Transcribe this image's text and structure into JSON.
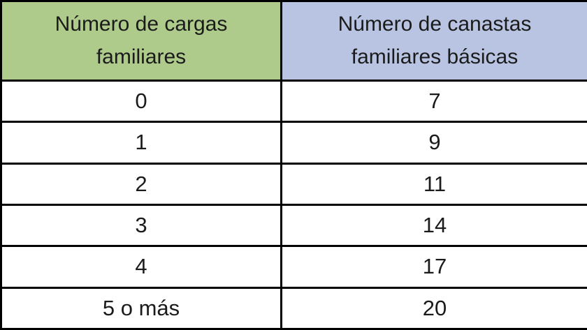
{
  "table": {
    "headers": [
      {
        "label": "Número de cargas familiares",
        "bg": "#aecb8c"
      },
      {
        "label": "Número de canastas familiares básicas",
        "bg": "#b8c4e2"
      }
    ],
    "rows": [
      [
        "0",
        "7"
      ],
      [
        "1",
        "9"
      ],
      [
        "2",
        "11"
      ],
      [
        "3",
        "14"
      ],
      [
        "4",
        "17"
      ],
      [
        "5 o más",
        "20"
      ]
    ]
  },
  "colors": {
    "header_green": "#aecb8c",
    "header_blue": "#b8c4e2",
    "border": "#000000",
    "text": "#1b1b1b",
    "row_background": "#ffffff"
  },
  "chart_data": {
    "type": "table",
    "title": "",
    "columns": [
      "Número de cargas familiares",
      "Número de canastas familiares básicas"
    ],
    "categories": [
      "0",
      "1",
      "2",
      "3",
      "4",
      "5 o más"
    ],
    "values": [
      7,
      9,
      11,
      14,
      17,
      20
    ],
    "rows": [
      [
        "0",
        7
      ],
      [
        "1",
        9
      ],
      [
        "2",
        11
      ],
      [
        "3",
        14
      ],
      [
        "4",
        17
      ],
      [
        "5 o más",
        20
      ]
    ],
    "legend_position": "none",
    "grid": true
  }
}
